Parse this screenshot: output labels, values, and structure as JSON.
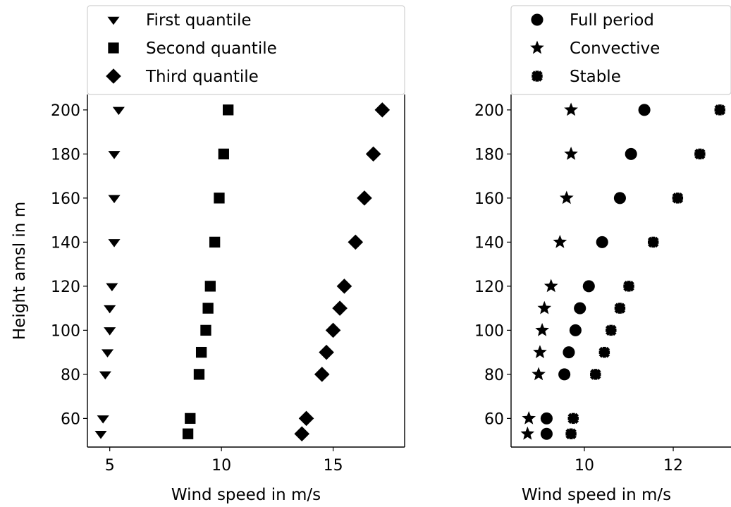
{
  "chart_data": [
    {
      "type": "scatter",
      "xlabel": "Wind speed in m/s",
      "ylabel": "Height amsl in m",
      "xlim": [
        4.0,
        18.2
      ],
      "ylim": [
        47,
        207
      ],
      "xticks": [
        5,
        10,
        15
      ],
      "yticks": [
        60,
        80,
        100,
        120,
        140,
        160,
        180,
        200
      ],
      "legend": "top, above plot",
      "grid": false,
      "series": [
        {
          "name": "First quantile",
          "marker": "triangle-down",
          "x": [
            5.4,
            5.2,
            5.2,
            5.2,
            5.1,
            5.0,
            5.0,
            4.9,
            4.8,
            4.7,
            4.6
          ],
          "y": [
            200,
            180,
            160,
            140,
            120,
            110,
            100,
            90,
            80,
            60,
            53
          ]
        },
        {
          "name": "Second quantile",
          "marker": "square",
          "x": [
            10.3,
            10.1,
            9.9,
            9.7,
            9.5,
            9.4,
            9.3,
            9.1,
            9.0,
            8.6,
            8.5
          ],
          "y": [
            200,
            180,
            160,
            140,
            120,
            110,
            100,
            90,
            80,
            60,
            53
          ]
        },
        {
          "name": "Third quantile",
          "marker": "diamond",
          "x": [
            17.2,
            16.8,
            16.4,
            16.0,
            15.5,
            15.3,
            15.0,
            14.7,
            14.5,
            13.8,
            13.6
          ],
          "y": [
            200,
            180,
            160,
            140,
            120,
            110,
            100,
            90,
            80,
            60,
            53
          ]
        }
      ]
    },
    {
      "type": "scatter",
      "xlabel": "Wind speed in m/s",
      "ylabel": "",
      "xlim": [
        8.35,
        13.3
      ],
      "ylim": [
        47,
        207
      ],
      "xticks": [
        10,
        12
      ],
      "yticks": [
        60,
        80,
        100,
        120,
        140,
        160,
        180,
        200
      ],
      "legend": "top, above plot",
      "grid": false,
      "series": [
        {
          "name": "Full period",
          "marker": "circle",
          "x": [
            11.35,
            11.05,
            10.8,
            10.4,
            10.1,
            9.9,
            9.8,
            9.65,
            9.55,
            9.15,
            9.15
          ],
          "y": [
            200,
            180,
            160,
            140,
            120,
            110,
            100,
            90,
            80,
            60,
            53
          ]
        },
        {
          "name": "Convective",
          "marker": "star",
          "x": [
            9.7,
            9.7,
            9.6,
            9.45,
            9.25,
            9.1,
            9.05,
            9.0,
            8.97,
            8.75,
            8.72
          ],
          "y": [
            200,
            180,
            160,
            140,
            120,
            110,
            100,
            90,
            80,
            60,
            53
          ]
        },
        {
          "name": "Stable",
          "marker": "cross",
          "x": [
            13.05,
            12.6,
            12.1,
            11.55,
            11.0,
            10.8,
            10.6,
            10.45,
            10.25,
            9.75,
            9.7
          ],
          "y": [
            200,
            180,
            160,
            140,
            120,
            110,
            100,
            90,
            80,
            60,
            53
          ]
        }
      ]
    }
  ]
}
